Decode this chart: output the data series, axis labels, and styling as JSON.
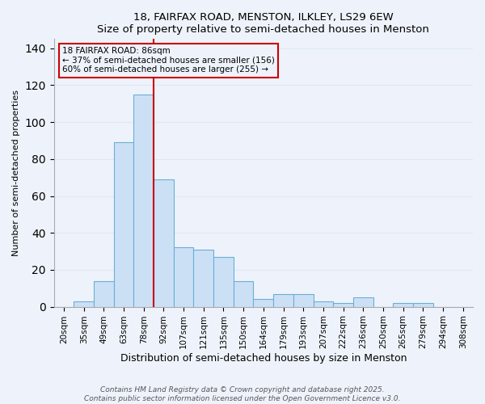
{
  "title": "18, FAIRFAX ROAD, MENSTON, ILKLEY, LS29 6EW",
  "subtitle": "Size of property relative to semi-detached houses in Menston",
  "xlabel": "Distribution of semi-detached houses by size in Menston",
  "ylabel": "Number of semi-detached properties",
  "bar_labels": [
    "20sqm",
    "35sqm",
    "49sqm",
    "63sqm",
    "78sqm",
    "92sqm",
    "107sqm",
    "121sqm",
    "135sqm",
    "150sqm",
    "164sqm",
    "179sqm",
    "193sqm",
    "207sqm",
    "222sqm",
    "236sqm",
    "250sqm",
    "265sqm",
    "279sqm",
    "294sqm",
    "308sqm"
  ],
  "bar_values": [
    0,
    3,
    14,
    89,
    115,
    69,
    32,
    31,
    27,
    14,
    4,
    7,
    7,
    3,
    2,
    5,
    0,
    2,
    2,
    0,
    0
  ],
  "bar_color": "#cce0f5",
  "bar_edgecolor": "#6aaed6",
  "vline_index": 5,
  "vline_color": "#cc0000",
  "annotation_title": "18 FAIRFAX ROAD: 86sqm",
  "annotation_line1": "← 37% of semi-detached houses are smaller (156)",
  "annotation_line2": "60% of semi-detached houses are larger (255) →",
  "annotation_box_edgecolor": "#cc0000",
  "ylim": [
    0,
    145
  ],
  "yticks": [
    0,
    20,
    40,
    60,
    80,
    100,
    120,
    140
  ],
  "footer1": "Contains HM Land Registry data © Crown copyright and database right 2025.",
  "footer2": "Contains public sector information licensed under the Open Government Licence v3.0.",
  "bg_color": "#eef3fb",
  "grid_color": "#dce8f8"
}
